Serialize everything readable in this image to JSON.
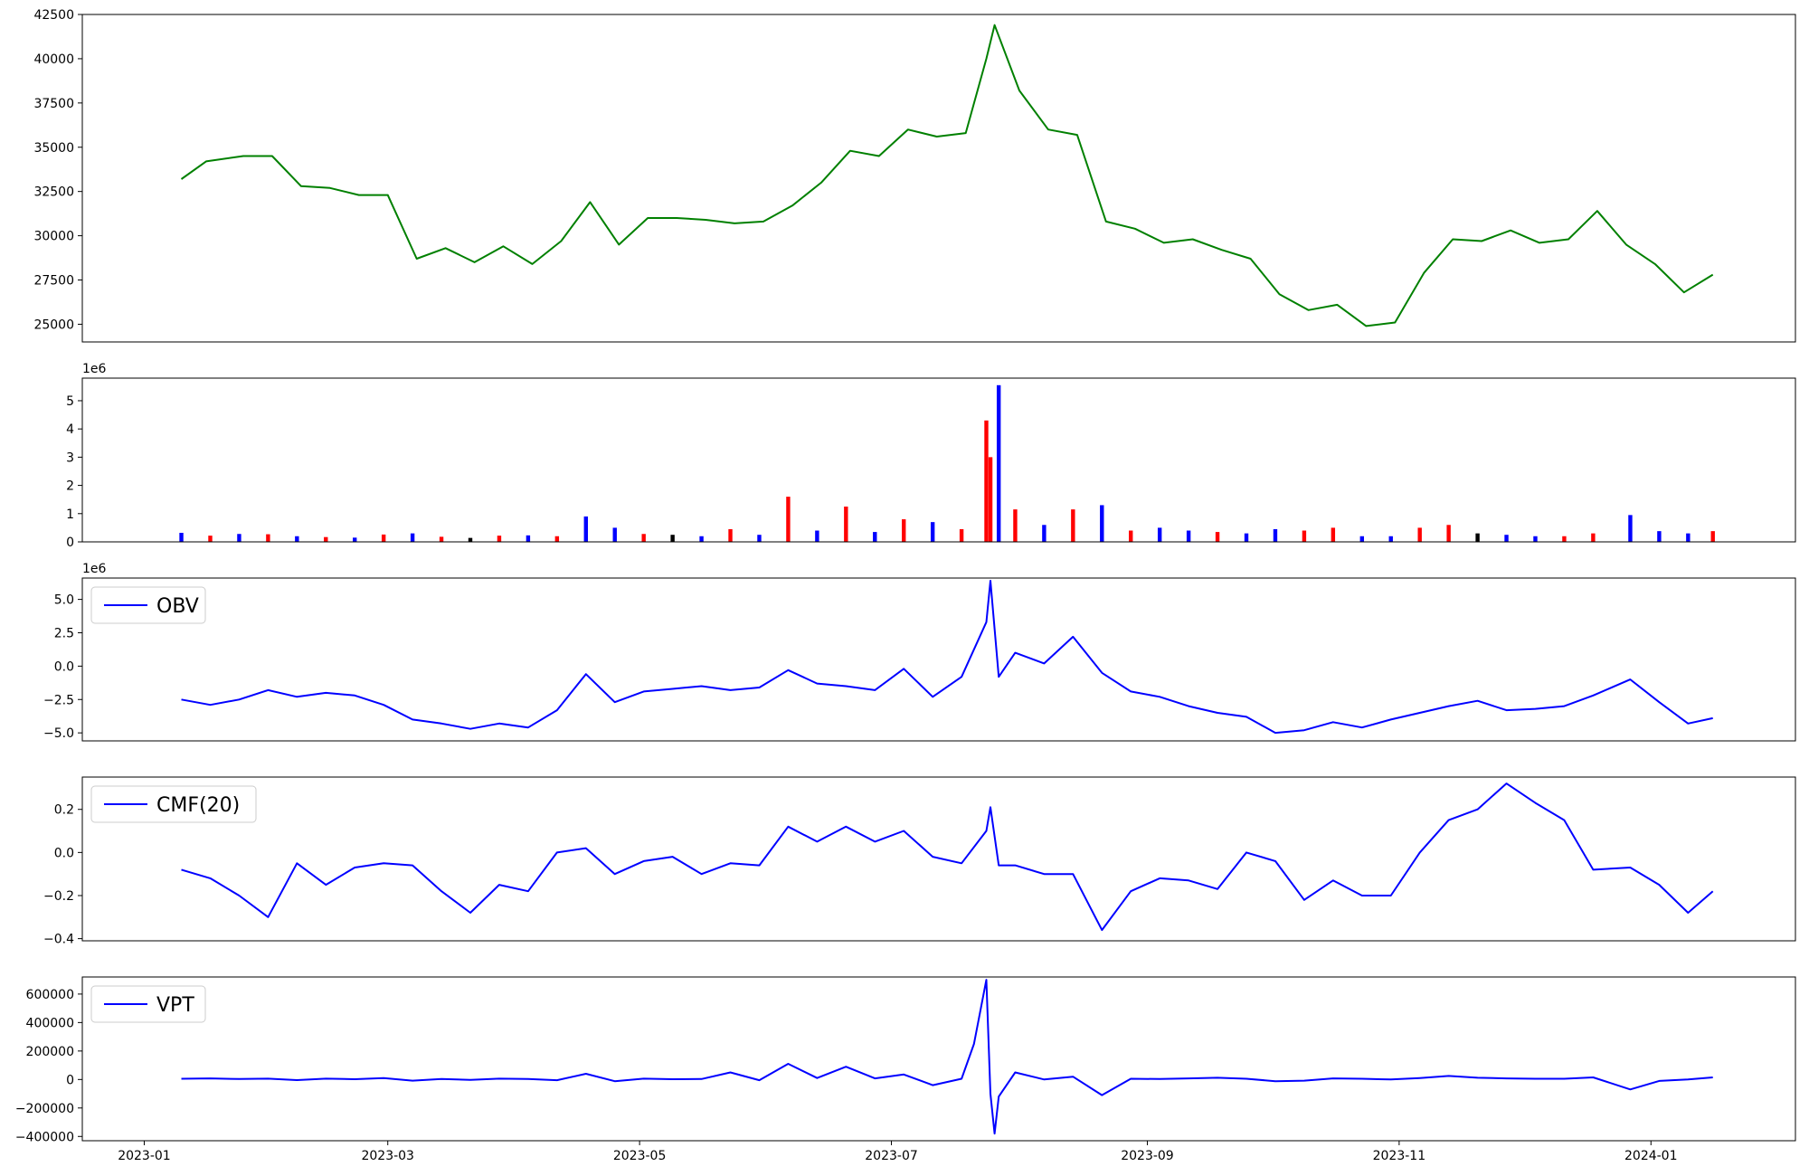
{
  "x_axis": {
    "ticks": [
      "2023-01",
      "2023-03",
      "2023-05",
      "2023-07",
      "2023-09",
      "2023-11",
      "2024-01"
    ]
  },
  "chart_data": [
    {
      "type": "line",
      "color": "#008000",
      "ylim": [
        24000,
        42500
      ],
      "yticks": [
        "25000",
        "27500",
        "30000",
        "32500",
        "35000",
        "37500",
        "40000",
        "42500"
      ],
      "x": [
        "2023-01-10",
        "2023-01-16",
        "2023-01-25",
        "2023-02-01",
        "2023-02-08",
        "2023-02-15",
        "2023-02-22",
        "2023-03-01",
        "2023-03-08",
        "2023-03-15",
        "2023-03-22",
        "2023-03-29",
        "2023-04-05",
        "2023-04-12",
        "2023-04-19",
        "2023-04-26",
        "2023-05-03",
        "2023-05-10",
        "2023-05-17",
        "2023-05-24",
        "2023-05-31",
        "2023-06-07",
        "2023-06-14",
        "2023-06-21",
        "2023-06-28",
        "2023-07-05",
        "2023-07-12",
        "2023-07-19",
        "2023-07-24",
        "2023-07-26",
        "2023-08-01",
        "2023-08-08",
        "2023-08-15",
        "2023-08-22",
        "2023-08-29",
        "2023-09-05",
        "2023-09-12",
        "2023-09-19",
        "2023-09-26",
        "2023-10-03",
        "2023-10-10",
        "2023-10-17",
        "2023-10-24",
        "2023-10-31",
        "2023-11-07",
        "2023-11-14",
        "2023-11-21",
        "2023-11-28",
        "2023-12-05",
        "2023-12-12",
        "2023-12-19",
        "2023-12-26",
        "2024-01-02",
        "2024-01-09",
        "2024-01-16"
      ],
      "values": [
        33200,
        34200,
        34500,
        34500,
        32800,
        32700,
        32300,
        32300,
        28700,
        29300,
        28500,
        29400,
        28400,
        29700,
        31900,
        29500,
        31000,
        31000,
        30900,
        30700,
        30800,
        31700,
        33000,
        34800,
        34500,
        36000,
        35600,
        35800,
        40000,
        41900,
        38200,
        36000,
        35700,
        30800,
        30400,
        29600,
        29800,
        29200,
        28700,
        26700,
        25800,
        26100,
        24900,
        25100,
        27900,
        29800,
        29700,
        30300,
        29600,
        29800,
        31400,
        29500,
        28400,
        26800,
        27800
      ]
    },
    {
      "type": "bar",
      "exponent": "1e6",
      "ylim": [
        0,
        5.8
      ],
      "yticks": [
        "0",
        "1",
        "2",
        "3",
        "4",
        "5"
      ],
      "x": [
        "2023-01-10",
        "2023-01-17",
        "2023-01-24",
        "2023-01-31",
        "2023-02-07",
        "2023-02-14",
        "2023-02-21",
        "2023-02-28",
        "2023-03-07",
        "2023-03-14",
        "2023-03-21",
        "2023-03-28",
        "2023-04-04",
        "2023-04-11",
        "2023-04-18",
        "2023-04-25",
        "2023-05-02",
        "2023-05-09",
        "2023-05-16",
        "2023-05-23",
        "2023-05-30",
        "2023-06-06",
        "2023-06-13",
        "2023-06-20",
        "2023-06-27",
        "2023-07-04",
        "2023-07-11",
        "2023-07-18",
        "2023-07-24",
        "2023-07-25",
        "2023-07-27",
        "2023-07-31",
        "2023-08-07",
        "2023-08-14",
        "2023-08-21",
        "2023-08-28",
        "2023-09-04",
        "2023-09-11",
        "2023-09-18",
        "2023-09-25",
        "2023-10-02",
        "2023-10-09",
        "2023-10-16",
        "2023-10-23",
        "2023-10-30",
        "2023-11-06",
        "2023-11-13",
        "2023-11-20",
        "2023-11-27",
        "2023-12-04",
        "2023-12-11",
        "2023-12-18",
        "2023-12-27",
        "2024-01-03",
        "2024-01-10",
        "2024-01-16"
      ],
      "values": [
        0.32,
        0.22,
        0.28,
        0.27,
        0.2,
        0.17,
        0.15,
        0.26,
        0.3,
        0.18,
        0.14,
        0.22,
        0.23,
        0.2,
        0.9,
        0.5,
        0.28,
        0.25,
        0.2,
        0.45,
        0.25,
        1.6,
        0.4,
        1.25,
        0.35,
        0.8,
        0.7,
        0.45,
        4.3,
        3.0,
        5.55,
        1.15,
        0.6,
        1.15,
        1.3,
        0.4,
        0.5,
        0.4,
        0.35,
        0.3,
        0.45,
        0.4,
        0.5,
        0.2,
        0.2,
        0.5,
        0.6,
        0.3,
        0.25,
        0.2,
        0.2,
        0.3,
        0.95,
        0.38,
        0.3,
        0.38
      ],
      "colors": [
        "blue",
        "red",
        "blue",
        "red",
        "blue",
        "red",
        "blue",
        "red",
        "blue",
        "red",
        "black",
        "red",
        "blue",
        "red",
        "blue",
        "blue",
        "red",
        "black",
        "blue",
        "red",
        "blue",
        "red",
        "blue",
        "red",
        "blue",
        "red",
        "blue",
        "red",
        "red",
        "red",
        "blue",
        "red",
        "blue",
        "red",
        "blue",
        "red",
        "blue",
        "blue",
        "red",
        "blue",
        "blue",
        "red",
        "red",
        "blue",
        "blue",
        "red",
        "red",
        "black",
        "blue",
        "blue",
        "red",
        "red",
        "blue",
        "blue",
        "blue",
        "red"
      ]
    },
    {
      "type": "line",
      "color": "#0000ff",
      "legend": "OBV",
      "exponent": "1e6",
      "ylim": [
        -5.6,
        6.6
      ],
      "yticks": [
        "−5.0",
        "−2.5",
        "0.0",
        "2.5",
        "5.0"
      ],
      "x": [
        "2023-01-10",
        "2023-01-17",
        "2023-01-24",
        "2023-01-31",
        "2023-02-07",
        "2023-02-14",
        "2023-02-21",
        "2023-02-28",
        "2023-03-07",
        "2023-03-14",
        "2023-03-21",
        "2023-03-28",
        "2023-04-04",
        "2023-04-11",
        "2023-04-18",
        "2023-04-25",
        "2023-05-02",
        "2023-05-09",
        "2023-05-16",
        "2023-05-23",
        "2023-05-30",
        "2023-06-06",
        "2023-06-13",
        "2023-06-20",
        "2023-06-27",
        "2023-07-04",
        "2023-07-11",
        "2023-07-18",
        "2023-07-24",
        "2023-07-25",
        "2023-07-27",
        "2023-07-31",
        "2023-08-07",
        "2023-08-14",
        "2023-08-21",
        "2023-08-28",
        "2023-09-04",
        "2023-09-11",
        "2023-09-18",
        "2023-09-25",
        "2023-10-02",
        "2023-10-09",
        "2023-10-16",
        "2023-10-23",
        "2023-10-30",
        "2023-11-06",
        "2023-11-13",
        "2023-11-20",
        "2023-11-27",
        "2023-12-04",
        "2023-12-11",
        "2023-12-18",
        "2023-12-27",
        "2024-01-03",
        "2024-01-10",
        "2024-01-16"
      ],
      "values": [
        -2.5,
        -2.9,
        -2.5,
        -1.8,
        -2.3,
        -2.0,
        -2.2,
        -2.9,
        -4.0,
        -4.3,
        -4.7,
        -4.3,
        -4.6,
        -3.3,
        -0.6,
        -2.7,
        -1.9,
        -1.7,
        -1.5,
        -1.8,
        -1.6,
        -0.3,
        -1.3,
        -1.5,
        -1.8,
        -0.2,
        -2.3,
        -0.8,
        3.3,
        6.4,
        -0.8,
        1.0,
        0.2,
        2.2,
        -0.5,
        -1.9,
        -2.3,
        -3.0,
        -3.5,
        -3.8,
        -5.0,
        -4.8,
        -4.2,
        -4.6,
        -4.0,
        -3.5,
        -3.0,
        -2.6,
        -3.3,
        -3.2,
        -3.0,
        -2.2,
        -1.0,
        -2.7,
        -4.3,
        -3.9
      ]
    },
    {
      "type": "line",
      "color": "#0000ff",
      "legend": "CMF(20)",
      "ylim": [
        -0.41,
        0.35
      ],
      "yticks": [
        "−0.4",
        "−0.2",
        "0.0",
        "0.2"
      ],
      "x": [
        "2023-01-10",
        "2023-01-17",
        "2023-01-24",
        "2023-01-31",
        "2023-02-07",
        "2023-02-14",
        "2023-02-21",
        "2023-02-28",
        "2023-03-07",
        "2023-03-14",
        "2023-03-21",
        "2023-03-28",
        "2023-04-04",
        "2023-04-11",
        "2023-04-18",
        "2023-04-25",
        "2023-05-02",
        "2023-05-09",
        "2023-05-16",
        "2023-05-23",
        "2023-05-30",
        "2023-06-06",
        "2023-06-13",
        "2023-06-20",
        "2023-06-27",
        "2023-07-04",
        "2023-07-11",
        "2023-07-18",
        "2023-07-24",
        "2023-07-25",
        "2023-07-27",
        "2023-07-31",
        "2023-08-07",
        "2023-08-14",
        "2023-08-21",
        "2023-08-28",
        "2023-09-04",
        "2023-09-11",
        "2023-09-18",
        "2023-09-25",
        "2023-10-02",
        "2023-10-09",
        "2023-10-16",
        "2023-10-23",
        "2023-10-30",
        "2023-11-06",
        "2023-11-13",
        "2023-11-20",
        "2023-11-27",
        "2023-12-04",
        "2023-12-11",
        "2023-12-18",
        "2023-12-27",
        "2024-01-03",
        "2024-01-10",
        "2024-01-16"
      ],
      "values": [
        -0.08,
        -0.12,
        -0.2,
        -0.3,
        -0.05,
        -0.15,
        -0.07,
        -0.05,
        -0.06,
        -0.18,
        -0.28,
        -0.15,
        -0.18,
        0.0,
        0.02,
        -0.1,
        -0.04,
        -0.02,
        -0.1,
        -0.05,
        -0.06,
        0.12,
        0.05,
        0.12,
        0.05,
        0.1,
        -0.02,
        -0.05,
        0.1,
        0.21,
        -0.06,
        -0.06,
        -0.1,
        -0.1,
        -0.36,
        -0.18,
        -0.12,
        -0.13,
        -0.17,
        0.0,
        -0.04,
        -0.22,
        -0.13,
        -0.2,
        -0.2,
        0.0,
        0.15,
        0.2,
        0.32,
        0.23,
        0.15,
        -0.08,
        -0.07,
        -0.15,
        -0.28,
        -0.18
      ]
    },
    {
      "type": "line",
      "color": "#0000ff",
      "legend": "VPT",
      "ylim": [
        -430000,
        720000
      ],
      "yticks": [
        "−400000",
        "−200000",
        "0",
        "200000",
        "400000",
        "600000"
      ],
      "x": [
        "2023-01-10",
        "2023-01-17",
        "2023-01-24",
        "2023-01-31",
        "2023-02-07",
        "2023-02-14",
        "2023-02-21",
        "2023-02-28",
        "2023-03-07",
        "2023-03-14",
        "2023-03-21",
        "2023-03-28",
        "2023-04-04",
        "2023-04-11",
        "2023-04-18",
        "2023-04-25",
        "2023-05-02",
        "2023-05-09",
        "2023-05-16",
        "2023-05-23",
        "2023-05-30",
        "2023-06-06",
        "2023-06-13",
        "2023-06-20",
        "2023-06-27",
        "2023-07-04",
        "2023-07-11",
        "2023-07-18",
        "2023-07-21",
        "2023-07-24",
        "2023-07-25",
        "2023-07-26",
        "2023-07-27",
        "2023-07-31",
        "2023-08-07",
        "2023-08-14",
        "2023-08-21",
        "2023-08-28",
        "2023-09-04",
        "2023-09-11",
        "2023-09-18",
        "2023-09-25",
        "2023-10-02",
        "2023-10-09",
        "2023-10-16",
        "2023-10-23",
        "2023-10-30",
        "2023-11-06",
        "2023-11-13",
        "2023-11-20",
        "2023-11-27",
        "2023-12-04",
        "2023-12-11",
        "2023-12-18",
        "2023-12-27",
        "2024-01-03",
        "2024-01-10",
        "2024-01-16"
      ],
      "values": [
        5000,
        8000,
        3000,
        6000,
        -4000,
        6000,
        2000,
        10000,
        -8000,
        4000,
        -3000,
        6000,
        3000,
        -5000,
        40000,
        -12000,
        6000,
        2000,
        3000,
        50000,
        -5000,
        110000,
        10000,
        90000,
        8000,
        35000,
        -40000,
        5000,
        250000,
        700000,
        -100000,
        -380000,
        -120000,
        50000,
        0,
        20000,
        -110000,
        5000,
        3000,
        8000,
        12000,
        5000,
        -12000,
        -8000,
        8000,
        5000,
        0,
        10000,
        25000,
        12000,
        8000,
        5000,
        5000,
        15000,
        -70000,
        -10000,
        0,
        15000
      ]
    }
  ]
}
